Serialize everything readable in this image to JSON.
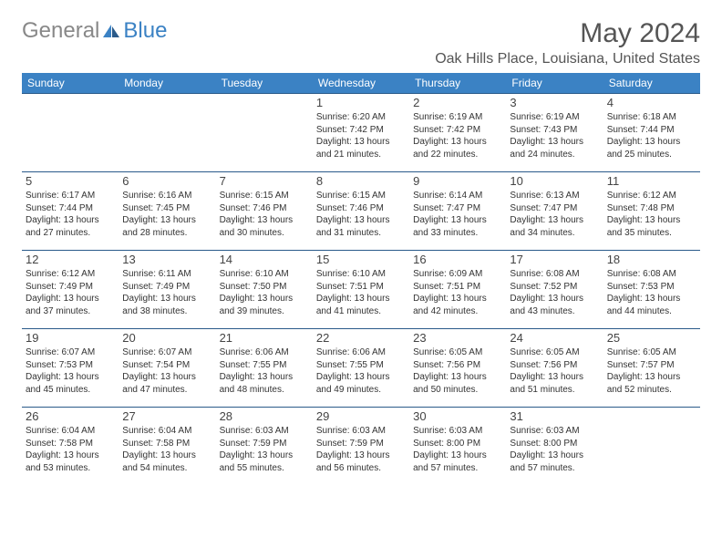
{
  "brand": {
    "part1": "General",
    "part2": "Blue"
  },
  "title": "May 2024",
  "location": "Oak Hills Place, Louisiana, United States",
  "colors": {
    "header_bg": "#3b82c4",
    "header_text": "#ffffff",
    "border": "#2a5a8a",
    "brand_gray": "#888888",
    "brand_blue": "#3b82c4",
    "text": "#333333",
    "background": "#ffffff"
  },
  "typography": {
    "title_fontsize": 30,
    "location_fontsize": 16,
    "dayheader_fontsize": 12,
    "daynum_fontsize": 13,
    "info_fontsize": 10
  },
  "day_headers": [
    "Sunday",
    "Monday",
    "Tuesday",
    "Wednesday",
    "Thursday",
    "Friday",
    "Saturday"
  ],
  "weeks": [
    [
      null,
      null,
      null,
      {
        "n": "1",
        "sr": "6:20 AM",
        "ss": "7:42 PM",
        "dl": "13 hours and 21 minutes."
      },
      {
        "n": "2",
        "sr": "6:19 AM",
        "ss": "7:42 PM",
        "dl": "13 hours and 22 minutes."
      },
      {
        "n": "3",
        "sr": "6:19 AM",
        "ss": "7:43 PM",
        "dl": "13 hours and 24 minutes."
      },
      {
        "n": "4",
        "sr": "6:18 AM",
        "ss": "7:44 PM",
        "dl": "13 hours and 25 minutes."
      }
    ],
    [
      {
        "n": "5",
        "sr": "6:17 AM",
        "ss": "7:44 PM",
        "dl": "13 hours and 27 minutes."
      },
      {
        "n": "6",
        "sr": "6:16 AM",
        "ss": "7:45 PM",
        "dl": "13 hours and 28 minutes."
      },
      {
        "n": "7",
        "sr": "6:15 AM",
        "ss": "7:46 PM",
        "dl": "13 hours and 30 minutes."
      },
      {
        "n": "8",
        "sr": "6:15 AM",
        "ss": "7:46 PM",
        "dl": "13 hours and 31 minutes."
      },
      {
        "n": "9",
        "sr": "6:14 AM",
        "ss": "7:47 PM",
        "dl": "13 hours and 33 minutes."
      },
      {
        "n": "10",
        "sr": "6:13 AM",
        "ss": "7:47 PM",
        "dl": "13 hours and 34 minutes."
      },
      {
        "n": "11",
        "sr": "6:12 AM",
        "ss": "7:48 PM",
        "dl": "13 hours and 35 minutes."
      }
    ],
    [
      {
        "n": "12",
        "sr": "6:12 AM",
        "ss": "7:49 PM",
        "dl": "13 hours and 37 minutes."
      },
      {
        "n": "13",
        "sr": "6:11 AM",
        "ss": "7:49 PM",
        "dl": "13 hours and 38 minutes."
      },
      {
        "n": "14",
        "sr": "6:10 AM",
        "ss": "7:50 PM",
        "dl": "13 hours and 39 minutes."
      },
      {
        "n": "15",
        "sr": "6:10 AM",
        "ss": "7:51 PM",
        "dl": "13 hours and 41 minutes."
      },
      {
        "n": "16",
        "sr": "6:09 AM",
        "ss": "7:51 PM",
        "dl": "13 hours and 42 minutes."
      },
      {
        "n": "17",
        "sr": "6:08 AM",
        "ss": "7:52 PM",
        "dl": "13 hours and 43 minutes."
      },
      {
        "n": "18",
        "sr": "6:08 AM",
        "ss": "7:53 PM",
        "dl": "13 hours and 44 minutes."
      }
    ],
    [
      {
        "n": "19",
        "sr": "6:07 AM",
        "ss": "7:53 PM",
        "dl": "13 hours and 45 minutes."
      },
      {
        "n": "20",
        "sr": "6:07 AM",
        "ss": "7:54 PM",
        "dl": "13 hours and 47 minutes."
      },
      {
        "n": "21",
        "sr": "6:06 AM",
        "ss": "7:55 PM",
        "dl": "13 hours and 48 minutes."
      },
      {
        "n": "22",
        "sr": "6:06 AM",
        "ss": "7:55 PM",
        "dl": "13 hours and 49 minutes."
      },
      {
        "n": "23",
        "sr": "6:05 AM",
        "ss": "7:56 PM",
        "dl": "13 hours and 50 minutes."
      },
      {
        "n": "24",
        "sr": "6:05 AM",
        "ss": "7:56 PM",
        "dl": "13 hours and 51 minutes."
      },
      {
        "n": "25",
        "sr": "6:05 AM",
        "ss": "7:57 PM",
        "dl": "13 hours and 52 minutes."
      }
    ],
    [
      {
        "n": "26",
        "sr": "6:04 AM",
        "ss": "7:58 PM",
        "dl": "13 hours and 53 minutes."
      },
      {
        "n": "27",
        "sr": "6:04 AM",
        "ss": "7:58 PM",
        "dl": "13 hours and 54 minutes."
      },
      {
        "n": "28",
        "sr": "6:03 AM",
        "ss": "7:59 PM",
        "dl": "13 hours and 55 minutes."
      },
      {
        "n": "29",
        "sr": "6:03 AM",
        "ss": "7:59 PM",
        "dl": "13 hours and 56 minutes."
      },
      {
        "n": "30",
        "sr": "6:03 AM",
        "ss": "8:00 PM",
        "dl": "13 hours and 57 minutes."
      },
      {
        "n": "31",
        "sr": "6:03 AM",
        "ss": "8:00 PM",
        "dl": "13 hours and 57 minutes."
      },
      null
    ]
  ],
  "labels": {
    "sunrise": "Sunrise:",
    "sunset": "Sunset:",
    "daylight": "Daylight:"
  }
}
